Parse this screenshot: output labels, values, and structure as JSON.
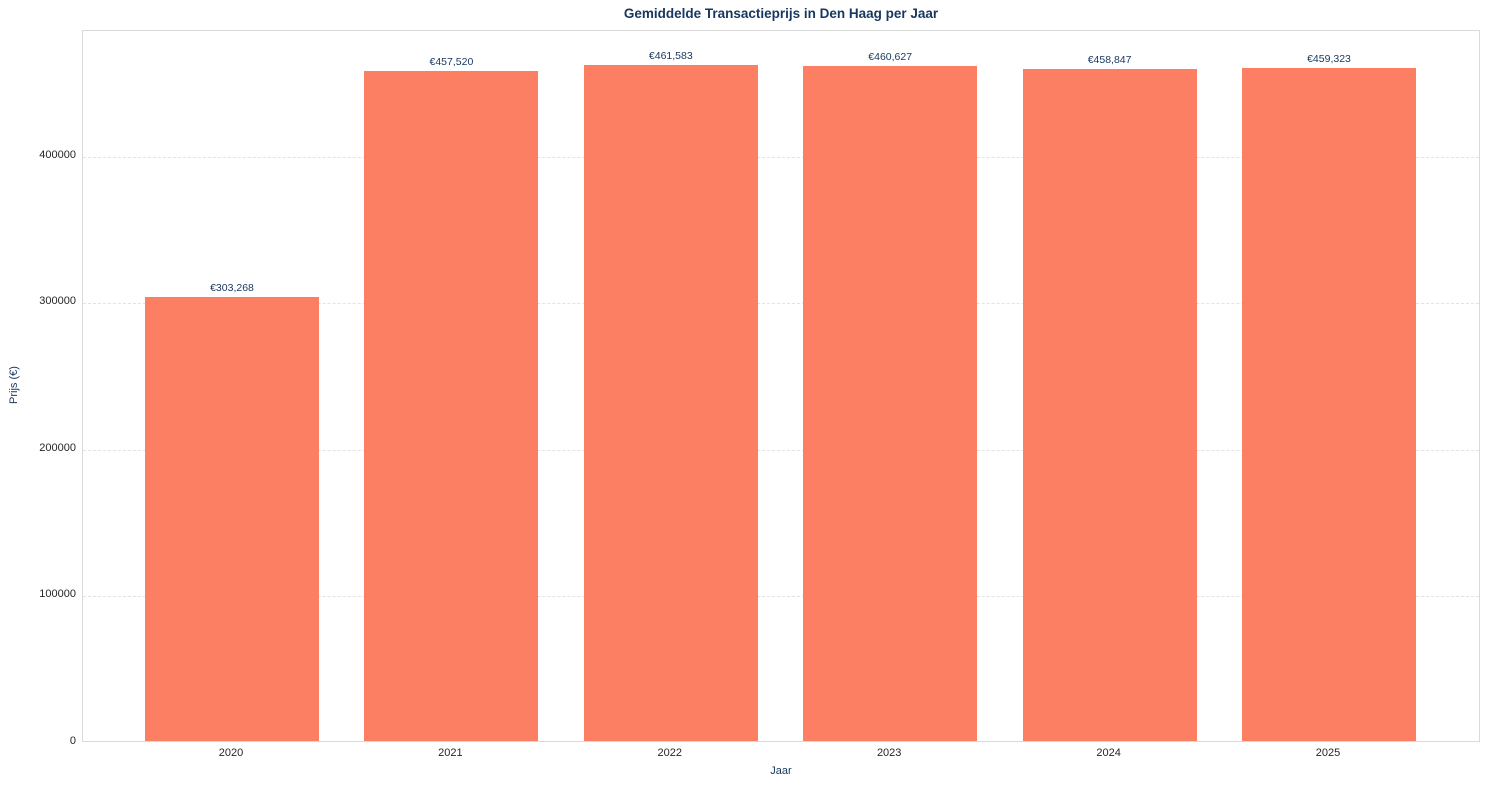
{
  "chart_data": {
    "type": "bar",
    "title": "Gemiddelde Transactieprijs in Den Haag per Jaar",
    "xlabel": "Jaar",
    "ylabel": "Prijs (€)",
    "categories": [
      "2020",
      "2021",
      "2022",
      "2023",
      "2024",
      "2025"
    ],
    "values": [
      303268,
      457520,
      461583,
      460627,
      458847,
      459323
    ],
    "value_labels": [
      "€303,268",
      "€457,520",
      "€461,583",
      "€460,627",
      "€458,847",
      "€459,323"
    ],
    "yticks": [
      0,
      100000,
      200000,
      300000,
      400000
    ],
    "ytick_labels": [
      "0",
      "100000",
      "200000",
      "300000",
      "400000"
    ],
    "ylim": [
      0,
      486000
    ],
    "grid": "horizontal-dashed",
    "legend": "none",
    "colors": {
      "bar": "#FC7F63",
      "title_and_axis_labels": "#17375E",
      "tick_labels": "#262626",
      "gridline": "#e3e3e3",
      "plot_border": "#d9d9d9",
      "background": "#ffffff"
    }
  }
}
